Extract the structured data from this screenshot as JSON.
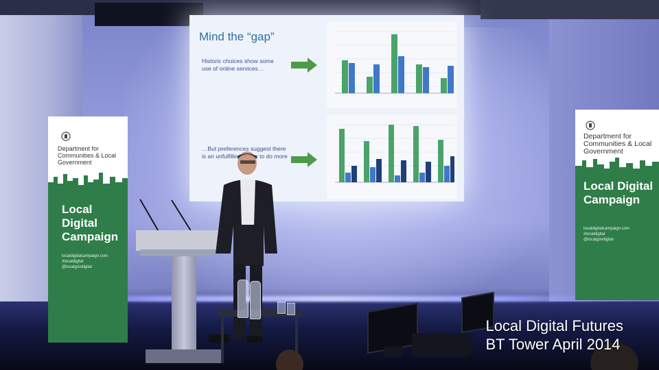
{
  "slide": {
    "title": "Mind the “gap”",
    "text_top": "Historic choices show some use of online services…",
    "text_bottom": "…But preferences suggest there is an unfulfilled desire to do more"
  },
  "banners": {
    "department": "Department for Communities & Local Government",
    "campaign": "Local Digital Campaign",
    "url_lines": [
      "localdigitalcampaign.com",
      "#localdigital",
      "@localgovdigital"
    ]
  },
  "caption": {
    "line1": "Local Digital Futures",
    "line2": "BT Tower April 2014"
  },
  "icons": [
    "crest-icon",
    "arrow-right-icon"
  ],
  "colors": {
    "slide_title": "#2f6f9e",
    "bar_green": "#4aa36a",
    "bar_blue": "#3f78c8",
    "bar_navy": "#1f3f7a",
    "banner_green": "#2f7d48",
    "arrow_green": "#4f9a4a"
  }
}
